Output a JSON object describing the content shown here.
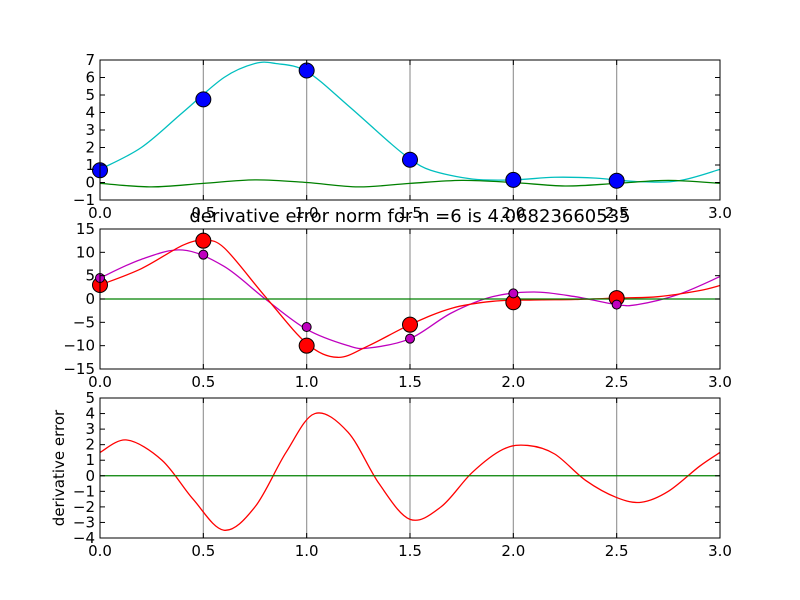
{
  "chart_data": [
    {
      "type": "line",
      "title": "",
      "xlabel": "",
      "ylabel": "",
      "xlim": [
        0.0,
        3.0
      ],
      "ylim": [
        -1,
        7
      ],
      "xticks": [
        0.0,
        0.5,
        1.0,
        1.5,
        2.0,
        2.5,
        3.0
      ],
      "xtick_labels": [
        "0.0",
        "0.5",
        "1.0",
        "1.5",
        "2.0",
        "2.5",
        "3.0"
      ],
      "yticks": [
        -1,
        0,
        1,
        2,
        3,
        4,
        5,
        6,
        7
      ],
      "ytick_labels": [
        "−1",
        "0",
        "1",
        "2",
        "3",
        "4",
        "5",
        "6",
        "7"
      ],
      "vgrid": [
        0.5,
        1.0,
        1.5,
        2.0,
        2.5
      ],
      "series": [
        {
          "type": "line",
          "color": "#00bfbf",
          "x": [
            0.0,
            0.2,
            0.4,
            0.6,
            0.75,
            0.85,
            1.0,
            1.2,
            1.4,
            1.5,
            1.6,
            1.8,
            2.0,
            2.2,
            2.4,
            2.6,
            2.8,
            3.0
          ],
          "y": [
            0.75,
            2.0,
            4.0,
            6.0,
            6.8,
            6.8,
            6.35,
            4.4,
            2.3,
            1.35,
            0.7,
            0.2,
            0.15,
            0.3,
            0.25,
            0.05,
            0.1,
            0.75
          ]
        },
        {
          "type": "line",
          "color": "#008000",
          "x": [
            0.0,
            0.25,
            0.5,
            0.75,
            1.0,
            1.25,
            1.5,
            1.75,
            2.0,
            2.25,
            2.5,
            2.75,
            3.0
          ],
          "y": [
            -0.05,
            -0.25,
            -0.05,
            0.15,
            0.0,
            -0.25,
            -0.05,
            0.12,
            0.0,
            -0.2,
            -0.05,
            0.12,
            -0.05
          ]
        },
        {
          "type": "scatter",
          "color": "#0000ff",
          "x": [
            0.0,
            0.5,
            1.0,
            1.5,
            2.0,
            2.5
          ],
          "y": [
            0.7,
            4.75,
            6.4,
            1.3,
            0.15,
            0.1
          ]
        }
      ]
    },
    {
      "type": "line",
      "title": "derivative error norm for n =6 is 4.06823660535",
      "xlabel": "",
      "ylabel": "",
      "xlim": [
        0.0,
        3.0
      ],
      "ylim": [
        -15,
        15
      ],
      "xticks": [
        0.0,
        0.5,
        1.0,
        1.5,
        2.0,
        2.5,
        3.0
      ],
      "xtick_labels": [
        "0.0",
        "0.5",
        "1.0",
        "1.5",
        "2.0",
        "2.5",
        "3.0"
      ],
      "yticks": [
        -15,
        -10,
        -5,
        0,
        5,
        10,
        15
      ],
      "ytick_labels": [
        "−15",
        "−10",
        "−5",
        "0",
        "5",
        "10",
        "15"
      ],
      "vgrid": [
        0.5,
        1.0,
        1.5,
        2.0,
        2.5
      ],
      "series": [
        {
          "type": "line",
          "color": "#bf00bf",
          "x": [
            0.0,
            0.2,
            0.4,
            0.6,
            0.8,
            1.0,
            1.2,
            1.3,
            1.5,
            1.7,
            1.9,
            2.1,
            2.3,
            2.5,
            2.6,
            2.8,
            3.0
          ],
          "y": [
            4.5,
            8.5,
            10.5,
            7.0,
            0.0,
            -6.5,
            -10.0,
            -10.5,
            -8.5,
            -3.0,
            0.5,
            1.5,
            0.5,
            -1.2,
            -1.2,
            1.0,
            4.8
          ]
        },
        {
          "type": "line",
          "color": "#ff0000",
          "x": [
            0.0,
            0.2,
            0.4,
            0.5,
            0.6,
            0.8,
            1.0,
            1.15,
            1.3,
            1.5,
            1.7,
            1.9,
            2.1,
            2.3,
            2.5,
            2.7,
            2.9,
            3.0
          ],
          "y": [
            3.0,
            6.5,
            11.5,
            12.5,
            11.0,
            0.5,
            -9.5,
            -12.5,
            -10.0,
            -5.5,
            -2.0,
            -0.5,
            -0.2,
            -0.1,
            0.2,
            0.5,
            1.8,
            2.9
          ]
        },
        {
          "type": "line",
          "color": "#008000",
          "x": [
            0.0,
            3.0
          ],
          "y": [
            0,
            0
          ]
        },
        {
          "type": "scatter",
          "color": "#ff0000",
          "x": [
            0.0,
            0.5,
            1.0,
            1.5,
            2.0,
            2.5
          ],
          "y": [
            3.0,
            12.5,
            -10.0,
            -5.5,
            -0.7,
            0.2
          ]
        },
        {
          "type": "scatter",
          "color": "#bf00bf",
          "x": [
            0.0,
            0.5,
            1.0,
            1.5,
            2.0,
            2.5
          ],
          "y": [
            4.5,
            9.5,
            -6.0,
            -8.5,
            1.2,
            -1.2
          ]
        }
      ]
    },
    {
      "type": "line",
      "title": "",
      "xlabel": "",
      "ylabel": "derivative error",
      "xlim": [
        0.0,
        3.0
      ],
      "ylim": [
        -4,
        5
      ],
      "xticks": [
        0.0,
        0.5,
        1.0,
        1.5,
        2.0,
        2.5,
        3.0
      ],
      "xtick_labels": [
        "0.0",
        "0.5",
        "1.0",
        "1.5",
        "2.0",
        "2.5",
        "3.0"
      ],
      "yticks": [
        -4,
        -3,
        -2,
        -1,
        0,
        1,
        2,
        3,
        4,
        5
      ],
      "ytick_labels": [
        "−4",
        "−3",
        "−2",
        "−1",
        "0",
        "1",
        "2",
        "3",
        "4",
        "5"
      ],
      "vgrid": [
        0.5,
        1.0,
        1.5,
        2.0,
        2.5
      ],
      "series": [
        {
          "type": "line",
          "color": "#ff0000",
          "x": [
            0.0,
            0.13,
            0.3,
            0.45,
            0.6,
            0.75,
            0.9,
            1.04,
            1.2,
            1.35,
            1.5,
            1.65,
            1.8,
            1.95,
            2.07,
            2.2,
            2.35,
            2.5,
            2.62,
            2.75,
            2.9,
            3.0
          ],
          "y": [
            1.5,
            2.3,
            1.0,
            -1.5,
            -3.5,
            -2.0,
            1.5,
            4.0,
            2.8,
            -0.5,
            -2.8,
            -2.0,
            0.2,
            1.7,
            1.95,
            1.4,
            -0.3,
            -1.4,
            -1.7,
            -1.0,
            0.6,
            1.5
          ]
        },
        {
          "type": "line",
          "color": "#008000",
          "x": [
            0.0,
            3.0
          ],
          "y": [
            0,
            0
          ]
        }
      ]
    }
  ]
}
